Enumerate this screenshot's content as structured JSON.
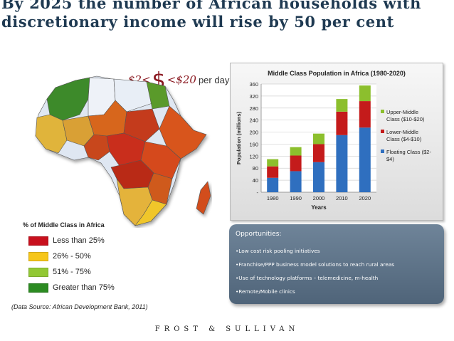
{
  "headline": "By 2025 the number of African households with discretionary income will rise by 50 per cent",
  "income_range": {
    "low": "$2<",
    "symbol": "$",
    "high": "<$20",
    "unit": "per day"
  },
  "map_legend": {
    "title": "% of Middle Class in Africa",
    "items": [
      {
        "label": "Less than 25%",
        "color": "#c8101d"
      },
      {
        "label": "26% - 50%",
        "color": "#f6c61a"
      },
      {
        "label": "51% - 75%",
        "color": "#92c834"
      },
      {
        "label": "Greater than 75%",
        "color": "#2c8b22"
      }
    ]
  },
  "source": "(Data Source: African Development Bank, 2011)",
  "chart_data": {
    "type": "bar",
    "stacked": true,
    "title": "Middle Class Population in Africa (1980-2020)",
    "xlabel": "Years",
    "ylabel": "Population (millions)",
    "categories": [
      "1980",
      "1990",
      "2000",
      "2010",
      "2020"
    ],
    "ylim": [
      0,
      360
    ],
    "yticks": [
      "-",
      "40",
      "80",
      "120",
      "160",
      "200",
      "240",
      "280",
      "320",
      "360"
    ],
    "series": [
      {
        "name": "Floating Class ($2-$4)",
        "color": "#2f6fbf",
        "values": [
          48,
          70,
          100,
          190,
          215
        ]
      },
      {
        "name": "Lower-Middle Class ($4-$10)",
        "color": "#c41b1b",
        "values": [
          38,
          52,
          60,
          78,
          88
        ]
      },
      {
        "name": "Upper-Middle Class ($10-$20)",
        "color": "#8cbf2d",
        "values": [
          24,
          28,
          35,
          42,
          52
        ]
      }
    ],
    "legend_order": [
      "Upper-Middle Class ($10-$20)",
      "Lower-Middle Class ($4-$10)",
      "Floating Class ($2-$4)"
    ],
    "legend_position": "right"
  },
  "opportunities": {
    "title": "Opportunities:",
    "items": [
      "•Low cost risk pooling initiatives",
      "•Franchise/PPP business model solutions to reach rural areas",
      "•Use of technology platforms – telemedicine, m-health",
      "•Remote/Mobile clinics"
    ]
  },
  "footer": "FROST & SULLIVAN",
  "colors": {
    "headline": "#1f3a52",
    "accent": "#8a1820",
    "panel": "#5d7287"
  }
}
